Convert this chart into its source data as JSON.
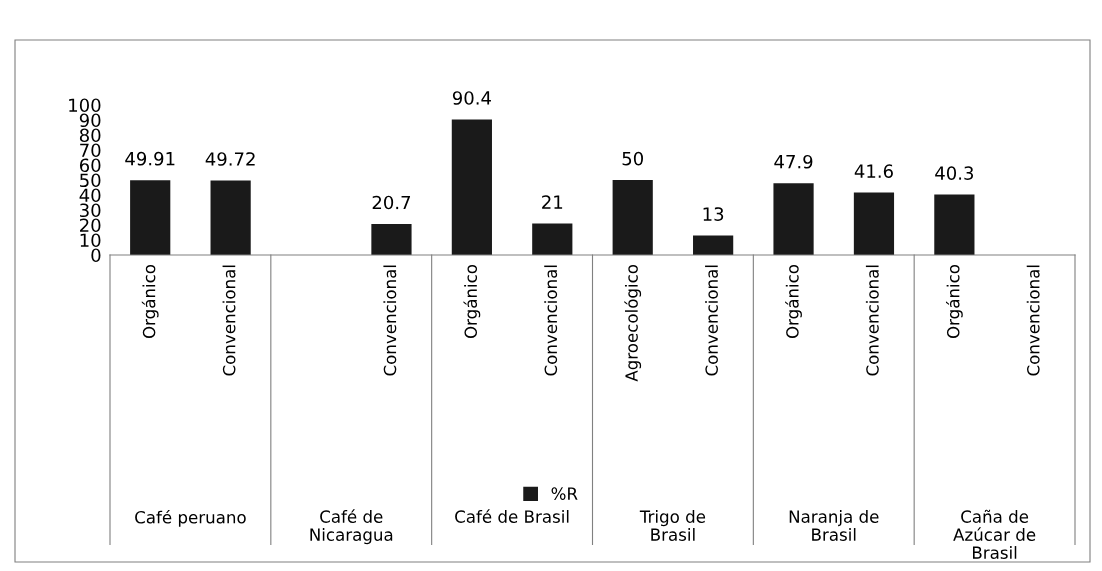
{
  "chart_data": {
    "type": "bar",
    "categories": [
      "Orgánico",
      "Convencional",
      null,
      "Convencional",
      "Orgánico",
      "Convencional",
      "Agroecológico",
      "Convencional",
      "Orgánico",
      "Convencional",
      "Orgánico",
      "Convencional"
    ],
    "series": [
      {
        "name": "%R",
        "color": "#1a1a1a",
        "values": [
          49.91,
          49.72,
          null,
          20.7,
          90.4,
          21,
          50,
          13,
          47.9,
          41.6,
          40.3,
          null
        ]
      }
    ],
    "ylim": [
      0,
      100
    ],
    "yticks": [
      0,
      10,
      20,
      30,
      40,
      50,
      60,
      70,
      80,
      90,
      100
    ],
    "data_labels": true,
    "legend": "bottom",
    "grid": false,
    "annotations": [
      "Café peruano",
      "Café de\nNicaragua",
      "Café de Brasil",
      "Trigo de\nBrasil",
      "Naranja de\nBrasil",
      "Caña de\nAzúcar de\nBrasil"
    ]
  }
}
